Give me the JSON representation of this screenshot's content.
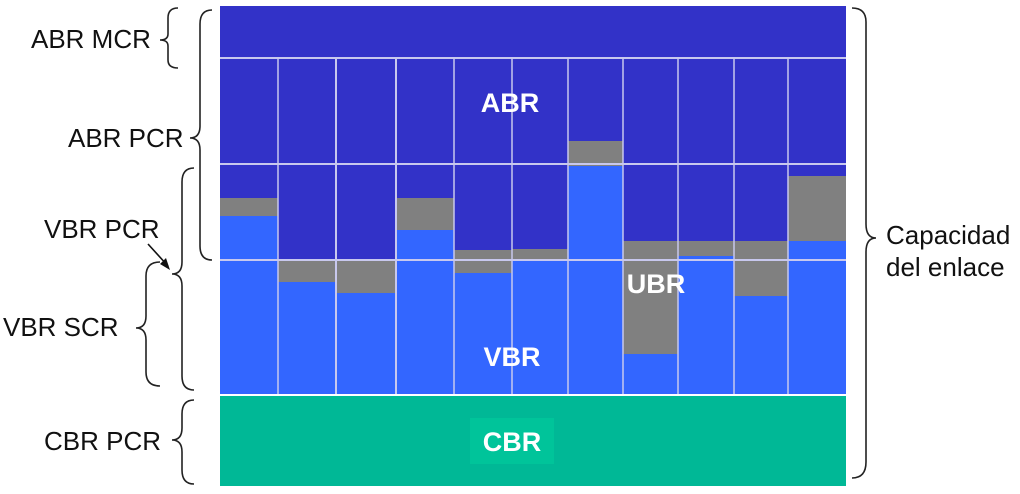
{
  "left_labels": {
    "abr_mcr": "ABR MCR",
    "abr_pcr": "ABR PCR",
    "vbr_pcr": "VBR PCR",
    "vbr_scr": "VBR SCR",
    "cbr_pcr": "CBR PCR"
  },
  "right_label": {
    "line1": "Capacidad",
    "line2": "del enlace"
  },
  "regions": {
    "abr": "ABR",
    "ubr": "UBR",
    "vbr": "VBR",
    "cbr": "CBR"
  },
  "colors": {
    "abr": "#3232c8",
    "vbr": "#3366ff",
    "ubr": "#808080",
    "cbr": "#00b896",
    "cbr_label_bg": "#00c49a",
    "grid": "#c8c8ee"
  }
}
